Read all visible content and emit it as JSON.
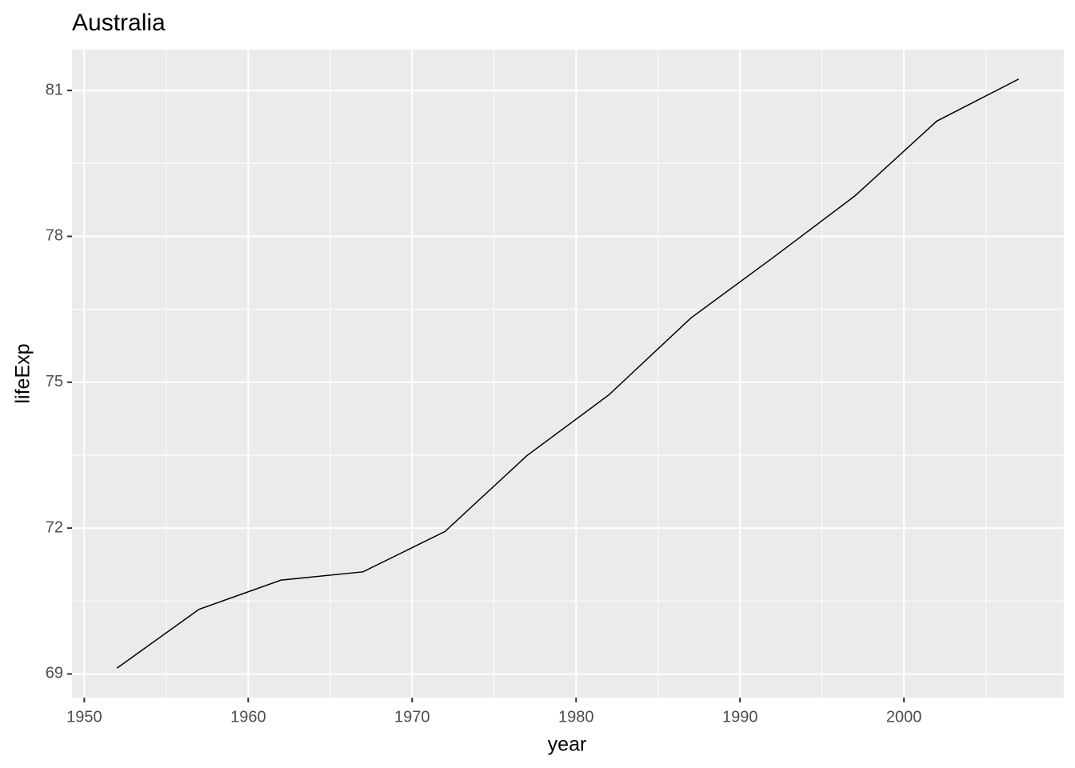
{
  "chart_data": {
    "type": "line",
    "title": "Australia",
    "x_label": "year",
    "y_label": "lifeExp",
    "x": [
      1952,
      1957,
      1962,
      1967,
      1972,
      1977,
      1982,
      1987,
      1992,
      1997,
      2002,
      2007
    ],
    "series": [
      {
        "color": "#000000",
        "values": [
          69.12,
          70.33,
          70.93,
          71.1,
          71.93,
          73.49,
          74.74,
          76.32,
          77.56,
          78.83,
          80.37,
          81.235
        ]
      }
    ],
    "xlim": [
      1949.25,
      2009.75
    ],
    "xticks": [
      1950,
      1960,
      1970,
      1980,
      1990,
      2000
    ],
    "ylim": [
      68.514,
      81.841
    ],
    "yticks": [
      69,
      72,
      75,
      78,
      81
    ],
    "grid": true
  }
}
